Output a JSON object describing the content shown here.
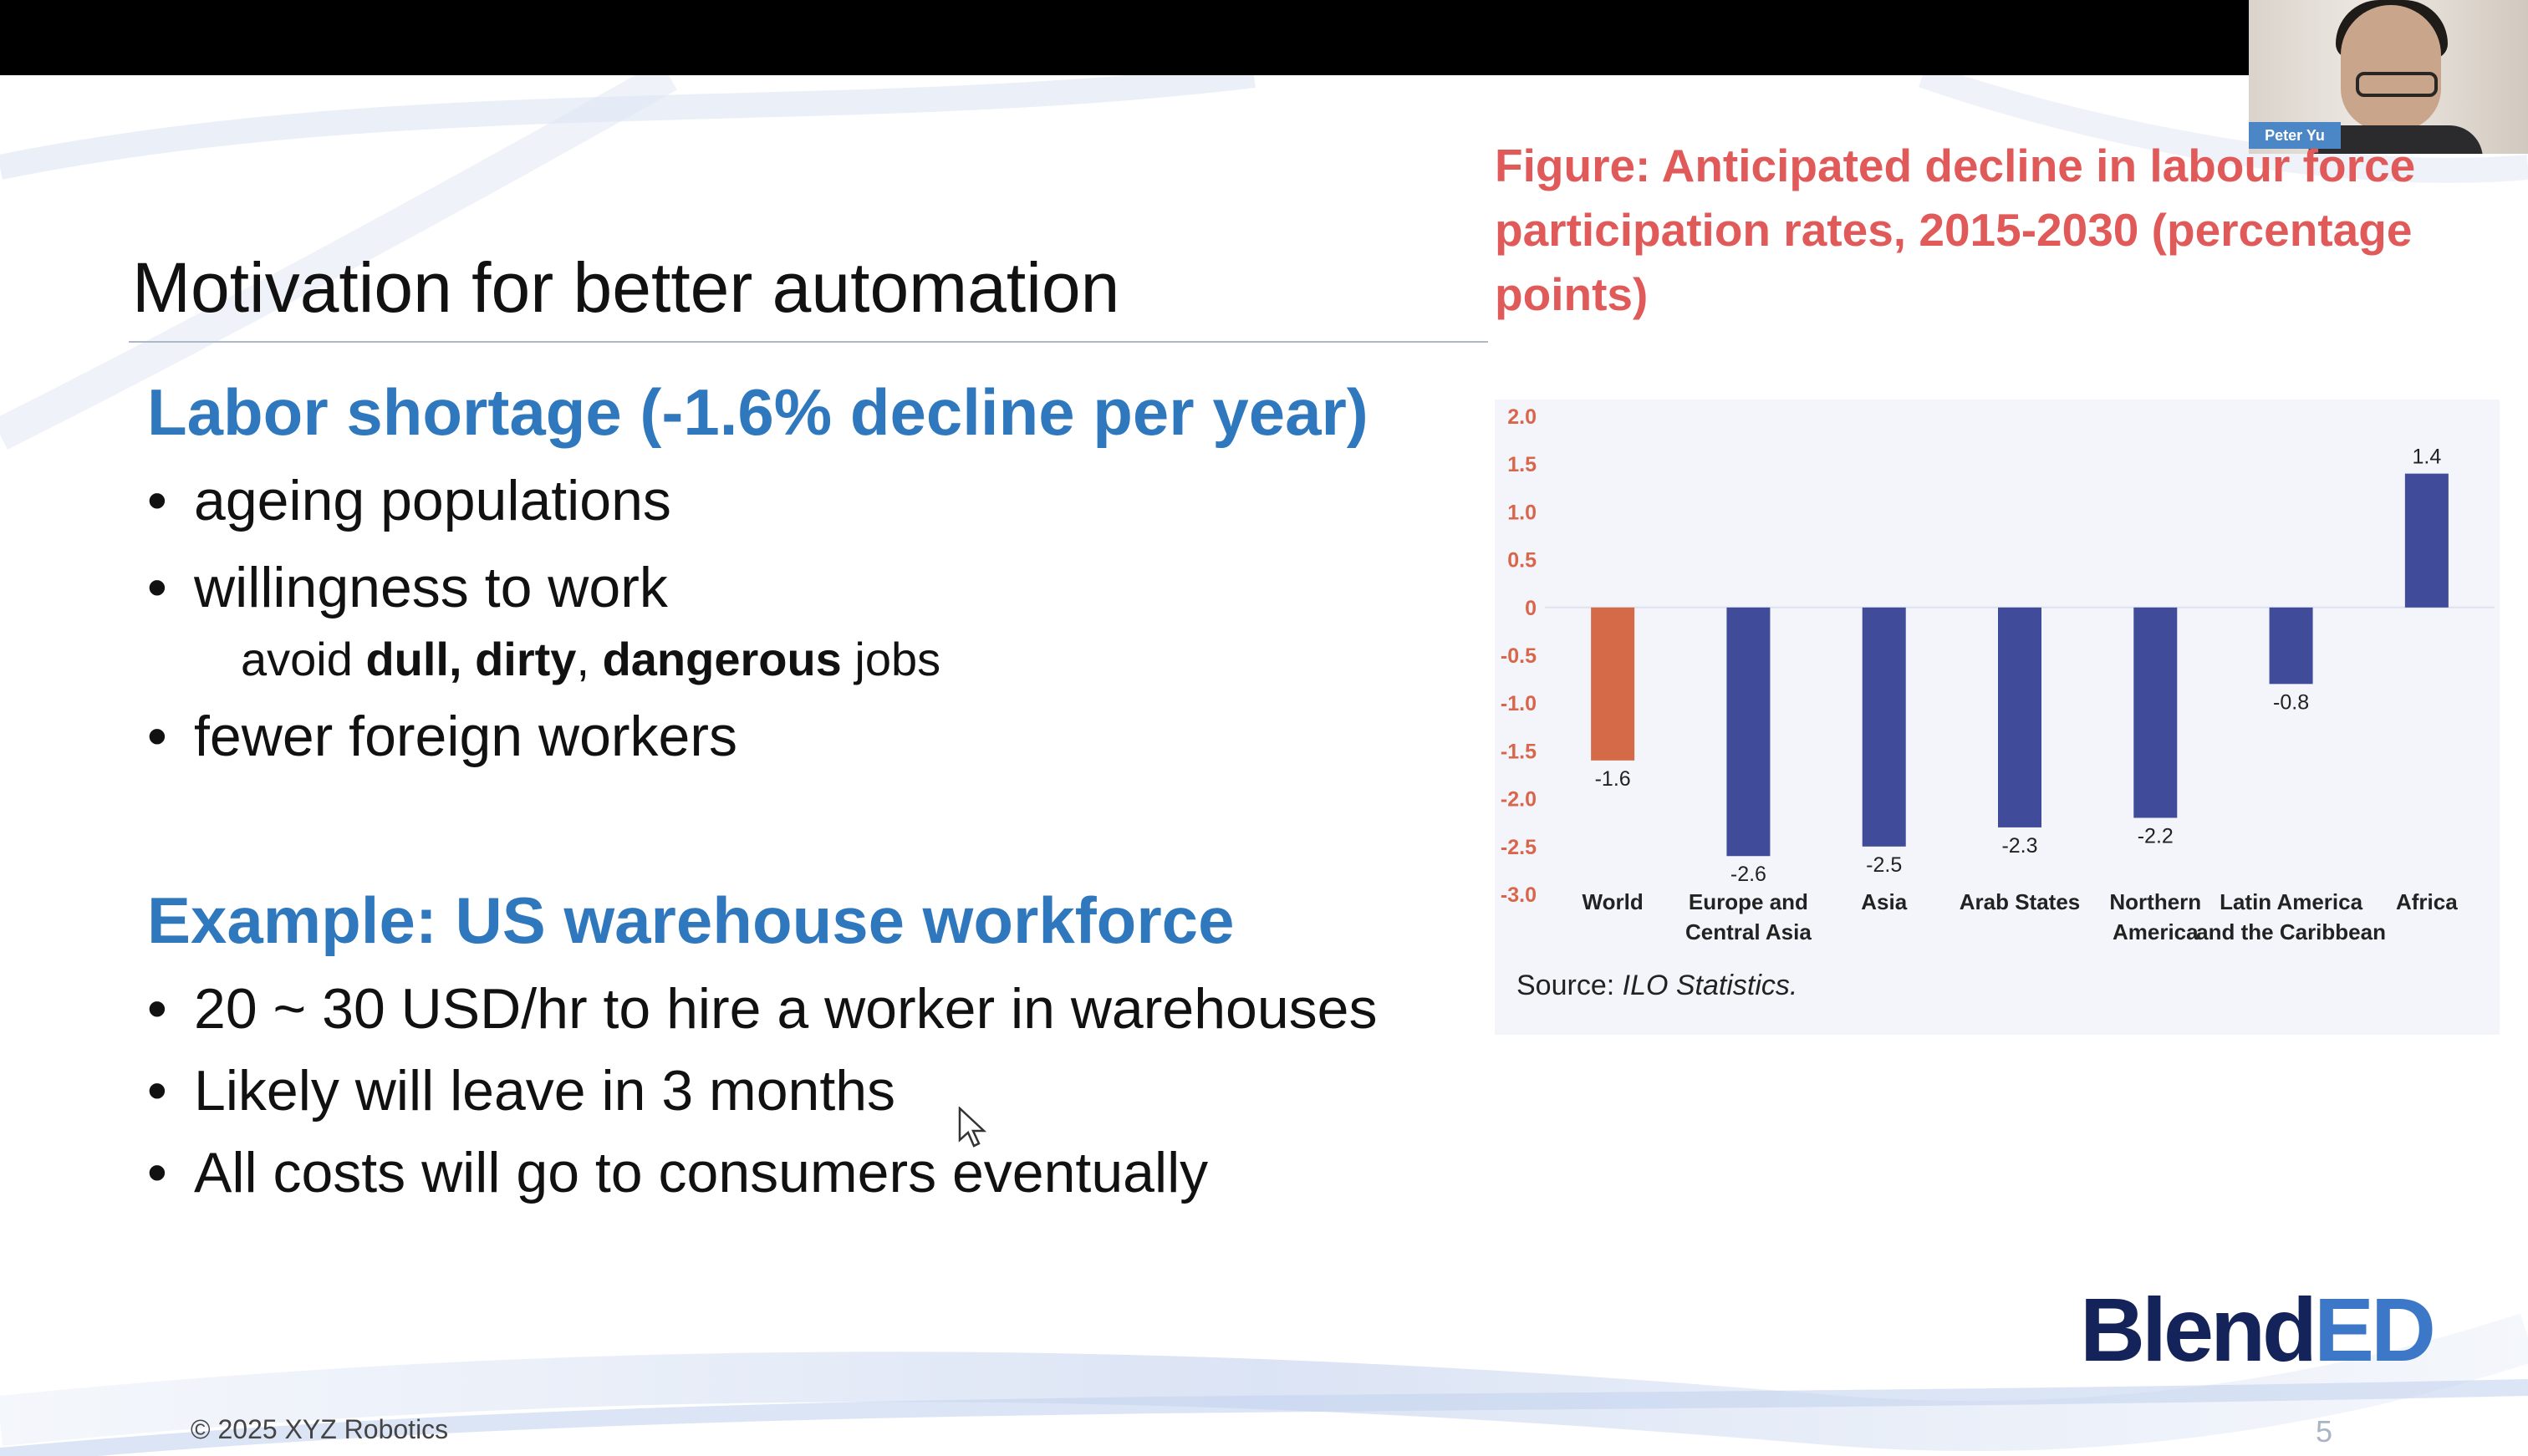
{
  "meeting": {
    "participant_name": "Peter Yu"
  },
  "slide": {
    "title": "Motivation for better automation",
    "section1": {
      "heading": "Labor shortage (-1.6% decline per year)",
      "bullets": [
        "ageing populations",
        "willingness to work",
        "fewer foreign workers"
      ],
      "sub": {
        "prefix": "avoid ",
        "bold1": "dull, dirty",
        "comma": ", ",
        "bold2": "dangerous",
        "suffix": " jobs"
      }
    },
    "section2": {
      "heading": "Example: US warehouse workforce",
      "bullets": [
        "20 ~ 30 USD/hr to hire a worker in warehouses",
        "Likely will leave in 3 months",
        "All costs will go to consumers eventually"
      ]
    },
    "figure": {
      "caption": "Figure: Anticipated decline in labour force participation rates, 2015-2030 (percentage points)",
      "source_prefix": "Source: ",
      "source_italic": "ILO Statistics."
    },
    "logo": {
      "part1": "Blend",
      "part2": "ED"
    },
    "footer": "© 2025 XYZ Robotics",
    "page_number": "5"
  },
  "chart_data": {
    "type": "bar",
    "categories": [
      [
        "World"
      ],
      [
        "Europe and",
        "Central Asia"
      ],
      [
        "Asia"
      ],
      [
        "Arab States"
      ],
      [
        "Northern",
        "America"
      ],
      [
        "Latin America",
        "and the Caribbean"
      ],
      [
        "Africa"
      ]
    ],
    "values": [
      -1.6,
      -2.6,
      -2.5,
      -2.3,
      -2.2,
      -0.8,
      1.4
    ],
    "value_labels": [
      "-1.6",
      "-2.6",
      "-2.5",
      "-2.3",
      "-2.2",
      "-0.8",
      "1.4"
    ],
    "bar_colors": [
      "#d46a47",
      "#404b9a",
      "#404b9a",
      "#404b9a",
      "#404b9a",
      "#404b9a",
      "#404b9a"
    ],
    "ylim": [
      -3.0,
      2.0
    ],
    "yticks": [
      "2.0",
      "1.5",
      "1.0",
      "0.5",
      "0",
      "-0.5",
      "-1.0",
      "-1.5",
      "-2.0",
      "-2.5",
      "-3.0"
    ],
    "ytick_values": [
      2.0,
      1.5,
      1.0,
      0.5,
      0,
      -0.5,
      -1.0,
      -1.5,
      -2.0,
      -2.5,
      -3.0
    ],
    "tick_color": "#d9664a",
    "grid": false,
    "xlabel": "",
    "ylabel": ""
  }
}
